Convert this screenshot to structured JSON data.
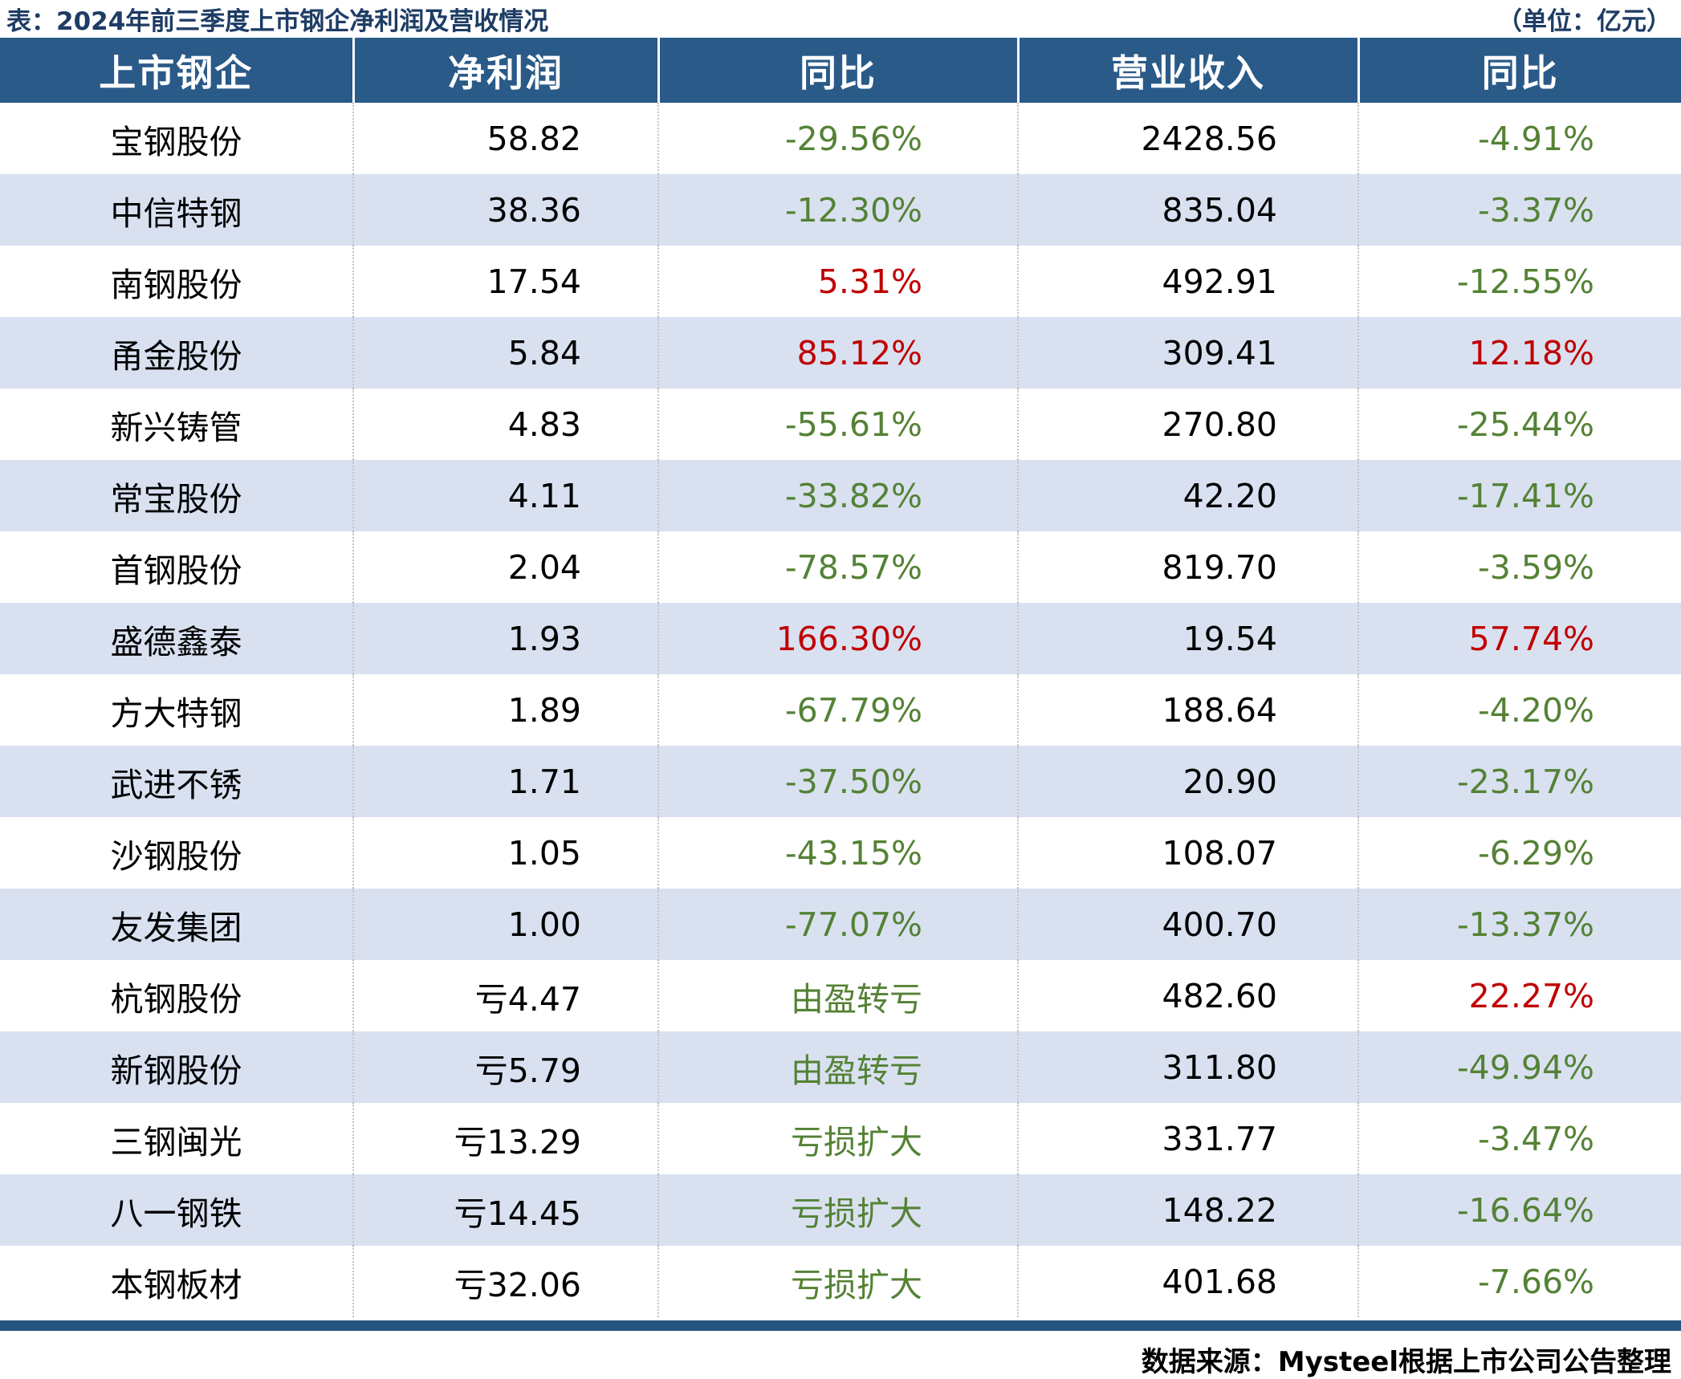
{
  "title": {
    "left": "表：2024年前三季度上市钢企净利润及营收情况",
    "right": "（单位：亿元）"
  },
  "table": {
    "headers": [
      "上市钢企",
      "净利润",
      "同比",
      "营业收入",
      "同比"
    ],
    "rows": [
      {
        "company": "宝钢股份",
        "net_profit": "58.82",
        "profit_yoy": "-29.56%",
        "profit_yoy_color": "green",
        "revenue": "2428.56",
        "revenue_yoy": "-4.91%",
        "revenue_yoy_color": "green"
      },
      {
        "company": "中信特钢",
        "net_profit": "38.36",
        "profit_yoy": "-12.30%",
        "profit_yoy_color": "green",
        "revenue": "835.04",
        "revenue_yoy": "-3.37%",
        "revenue_yoy_color": "green"
      },
      {
        "company": "南钢股份",
        "net_profit": "17.54",
        "profit_yoy": "5.31%",
        "profit_yoy_color": "red",
        "revenue": "492.91",
        "revenue_yoy": "-12.55%",
        "revenue_yoy_color": "green"
      },
      {
        "company": "甬金股份",
        "net_profit": "5.84",
        "profit_yoy": "85.12%",
        "profit_yoy_color": "red",
        "revenue": "309.41",
        "revenue_yoy": "12.18%",
        "revenue_yoy_color": "red"
      },
      {
        "company": "新兴铸管",
        "net_profit": "4.83",
        "profit_yoy": "-55.61%",
        "profit_yoy_color": "green",
        "revenue": "270.80",
        "revenue_yoy": "-25.44%",
        "revenue_yoy_color": "green"
      },
      {
        "company": "常宝股份",
        "net_profit": "4.11",
        "profit_yoy": "-33.82%",
        "profit_yoy_color": "green",
        "revenue": "42.20",
        "revenue_yoy": "-17.41%",
        "revenue_yoy_color": "green"
      },
      {
        "company": "首钢股份",
        "net_profit": "2.04",
        "profit_yoy": "-78.57%",
        "profit_yoy_color": "green",
        "revenue": "819.70",
        "revenue_yoy": "-3.59%",
        "revenue_yoy_color": "green"
      },
      {
        "company": "盛德鑫泰",
        "net_profit": "1.93",
        "profit_yoy": "166.30%",
        "profit_yoy_color": "red",
        "revenue": "19.54",
        "revenue_yoy": "57.74%",
        "revenue_yoy_color": "red"
      },
      {
        "company": "方大特钢",
        "net_profit": "1.89",
        "profit_yoy": "-67.79%",
        "profit_yoy_color": "green",
        "revenue": "188.64",
        "revenue_yoy": "-4.20%",
        "revenue_yoy_color": "green"
      },
      {
        "company": "武进不锈",
        "net_profit": "1.71",
        "profit_yoy": "-37.50%",
        "profit_yoy_color": "green",
        "revenue": "20.90",
        "revenue_yoy": "-23.17%",
        "revenue_yoy_color": "green"
      },
      {
        "company": "沙钢股份",
        "net_profit": "1.05",
        "profit_yoy": "-43.15%",
        "profit_yoy_color": "green",
        "revenue": "108.07",
        "revenue_yoy": "-6.29%",
        "revenue_yoy_color": "green"
      },
      {
        "company": "友发集团",
        "net_profit": "1.00",
        "profit_yoy": "-77.07%",
        "profit_yoy_color": "green",
        "revenue": "400.70",
        "revenue_yoy": "-13.37%",
        "revenue_yoy_color": "green"
      },
      {
        "company": "杭钢股份",
        "net_profit": "亏4.47",
        "profit_yoy": "由盈转亏",
        "profit_yoy_color": "green",
        "revenue": "482.60",
        "revenue_yoy": "22.27%",
        "revenue_yoy_color": "red"
      },
      {
        "company": "新钢股份",
        "net_profit": "亏5.79",
        "profit_yoy": "由盈转亏",
        "profit_yoy_color": "green",
        "revenue": "311.80",
        "revenue_yoy": "-49.94%",
        "revenue_yoy_color": "green"
      },
      {
        "company": "三钢闽光",
        "net_profit": "亏13.29",
        "profit_yoy": "亏损扩大",
        "profit_yoy_color": "green",
        "revenue": "331.77",
        "revenue_yoy": "-3.47%",
        "revenue_yoy_color": "green"
      },
      {
        "company": "八一钢铁",
        "net_profit": "亏14.45",
        "profit_yoy": "亏损扩大",
        "profit_yoy_color": "green",
        "revenue": "148.22",
        "revenue_yoy": "-16.64%",
        "revenue_yoy_color": "green"
      },
      {
        "company": "本钢板材",
        "net_profit": "亏32.06",
        "profit_yoy": "亏损扩大",
        "profit_yoy_color": "green",
        "revenue": "401.68",
        "revenue_yoy": "-7.66%",
        "revenue_yoy_color": "green"
      }
    ]
  },
  "footer": {
    "source": "数据来源：Mysteel根据上市公司公告整理"
  },
  "colors": {
    "header_bg": "#2a5a88",
    "row_alt_bg": "#d9e1f1",
    "increase_red": "#c00000",
    "decrease_green": "#548235",
    "title_color": "#1e3c64",
    "footer_bar": "#24567f"
  },
  "chart_data": {
    "type": "table",
    "title": "表：2024年前三季度上市钢企净利润及营收情况",
    "unit": "亿元",
    "columns": [
      "上市钢企",
      "净利润",
      "同比",
      "营业收入",
      "同比"
    ],
    "rows": [
      [
        "宝钢股份",
        "58.82",
        "-29.56%",
        "2428.56",
        "-4.91%"
      ],
      [
        "中信特钢",
        "38.36",
        "-12.30%",
        "835.04",
        "-3.37%"
      ],
      [
        "南钢股份",
        "17.54",
        "5.31%",
        "492.91",
        "-12.55%"
      ],
      [
        "甬金股份",
        "5.84",
        "85.12%",
        "309.41",
        "12.18%"
      ],
      [
        "新兴铸管",
        "4.83",
        "-55.61%",
        "270.80",
        "-25.44%"
      ],
      [
        "常宝股份",
        "4.11",
        "-33.82%",
        "42.20",
        "-17.41%"
      ],
      [
        "首钢股份",
        "2.04",
        "-78.57%",
        "819.70",
        "-3.59%"
      ],
      [
        "盛德鑫泰",
        "1.93",
        "166.30%",
        "19.54",
        "57.74%"
      ],
      [
        "方大特钢",
        "1.89",
        "-67.79%",
        "188.64",
        "-4.20%"
      ],
      [
        "武进不锈",
        "1.71",
        "-37.50%",
        "20.90",
        "-23.17%"
      ],
      [
        "沙钢股份",
        "1.05",
        "-43.15%",
        "108.07",
        "-6.29%"
      ],
      [
        "友发集团",
        "1.00",
        "-77.07%",
        "400.70",
        "-13.37%"
      ],
      [
        "杭钢股份",
        "亏4.47",
        "由盈转亏",
        "482.60",
        "22.27%"
      ],
      [
        "新钢股份",
        "亏5.79",
        "由盈转亏",
        "311.80",
        "-49.94%"
      ],
      [
        "三钢闽光",
        "亏13.29",
        "亏损扩大",
        "331.77",
        "-3.47%"
      ],
      [
        "八一钢铁",
        "亏14.45",
        "亏损扩大",
        "148.22",
        "-16.64%"
      ],
      [
        "本钢板材",
        "亏32.06",
        "亏损扩大",
        "401.68",
        "-7.66%"
      ]
    ],
    "source": "数据来源：Mysteel根据上市公司公告整理"
  }
}
